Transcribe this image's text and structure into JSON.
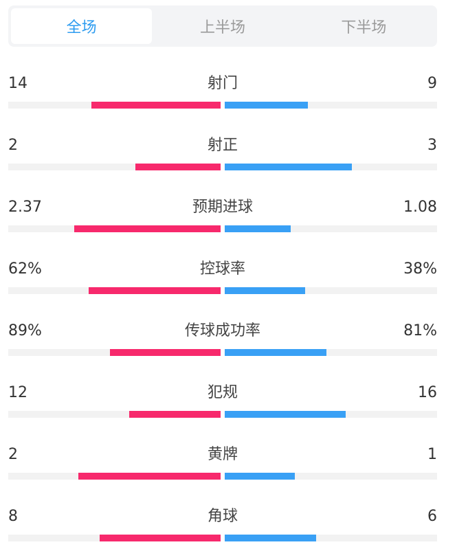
{
  "tabs": [
    {
      "label": "全场",
      "active": true
    },
    {
      "label": "上半场",
      "active": false
    },
    {
      "label": "下半场",
      "active": false
    }
  ],
  "colors": {
    "home_bar": "#f7296c",
    "away_bar": "#39a0f5",
    "active_tab": "#2d9cf0",
    "track": "#f2f2f2"
  },
  "stats": [
    {
      "label": "射门",
      "home": "14",
      "away": "9",
      "home_fill": 0.61,
      "away_fill": 0.39
    },
    {
      "label": "射正",
      "home": "2",
      "away": "3",
      "home_fill": 0.4,
      "away_fill": 0.6
    },
    {
      "label": "预期进球",
      "home": "2.37",
      "away": "1.08",
      "home_fill": 0.69,
      "away_fill": 0.31
    },
    {
      "label": "控球率",
      "home": "62%",
      "away": "38%",
      "home_fill": 0.62,
      "away_fill": 0.38
    },
    {
      "label": "传球成功率",
      "home": "89%",
      "away": "81%",
      "home_fill": 0.52,
      "away_fill": 0.48
    },
    {
      "label": "犯规",
      "home": "12",
      "away": "16",
      "home_fill": 0.43,
      "away_fill": 0.57
    },
    {
      "label": "黄牌",
      "home": "2",
      "away": "1",
      "home_fill": 0.67,
      "away_fill": 0.33
    },
    {
      "label": "角球",
      "home": "8",
      "away": "6",
      "home_fill": 0.57,
      "away_fill": 0.43
    }
  ]
}
